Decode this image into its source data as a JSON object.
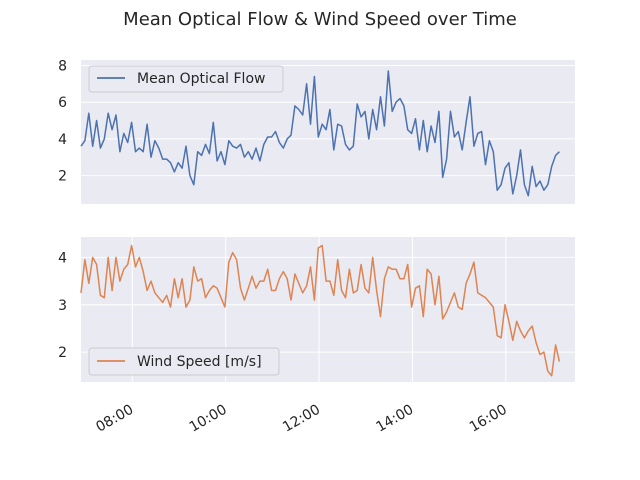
{
  "figure": {
    "title": "Mean Optical Flow  & Wind Speed over Time",
    "background": "#ffffff",
    "axes_face": "#eaeaf2",
    "grid_color": "#ffffff",
    "text_color": "#262626"
  },
  "chart_data": [
    {
      "type": "line",
      "title": "",
      "xlabel": "",
      "ylabel": "",
      "x_range": [
        "06:54",
        "17:29"
      ],
      "ylim": [
        0.45,
        8.3
      ],
      "yticks": [
        2,
        4,
        6,
        8
      ],
      "grid": true,
      "legend_position": "top-left",
      "show_xticklabels": false,
      "series": [
        {
          "name": "Mean Optical Flow",
          "color": "#4c72b0",
          "x_start": "06:54",
          "x_step_minutes": 5,
          "values": [
            3.6,
            3.9,
            5.4,
            3.6,
            5.0,
            3.5,
            4.0,
            5.4,
            4.5,
            5.3,
            3.3,
            4.3,
            3.8,
            4.9,
            3.3,
            3.5,
            3.3,
            4.8,
            3.0,
            3.9,
            3.5,
            2.9,
            2.9,
            2.7,
            2.2,
            2.7,
            2.4,
            3.6,
            2.0,
            1.5,
            3.3,
            3.1,
            3.7,
            3.2,
            4.9,
            2.8,
            3.3,
            2.6,
            3.9,
            3.6,
            3.5,
            3.7,
            3.0,
            3.3,
            2.9,
            3.5,
            2.8,
            3.7,
            4.1,
            4.1,
            4.4,
            3.8,
            3.5,
            4.0,
            4.2,
            5.8,
            5.6,
            5.3,
            7.0,
            4.8,
            7.4,
            4.1,
            4.8,
            4.5,
            5.6,
            3.4,
            4.8,
            4.7,
            3.7,
            3.4,
            3.6,
            5.9,
            5.2,
            5.5,
            4.0,
            5.6,
            4.5,
            6.3,
            4.7,
            7.7,
            5.5,
            6.0,
            6.2,
            5.8,
            4.5,
            4.3,
            5.1,
            3.4,
            5.0,
            3.3,
            4.7,
            3.8,
            5.5,
            1.9,
            2.9,
            5.5,
            4.1,
            4.4,
            3.4,
            4.9,
            6.3,
            3.6,
            4.3,
            4.4,
            2.6,
            3.9,
            3.3,
            1.2,
            1.5,
            2.4,
            2.7,
            1.0,
            2.0,
            3.4,
            1.5,
            0.9,
            2.5,
            1.4,
            1.7,
            1.2,
            1.5,
            2.5,
            3.1,
            3.3
          ]
        }
      ]
    },
    {
      "type": "line",
      "title": "",
      "xlabel": "",
      "ylabel": "",
      "x_range": [
        "06:54",
        "17:29"
      ],
      "ylim": [
        1.37,
        4.43
      ],
      "yticks": [
        2,
        3,
        4
      ],
      "grid": true,
      "legend_position": "bottom-left",
      "xtick_labels": [
        "08:00",
        "10:00",
        "12:00",
        "14:00",
        "16:00"
      ],
      "series": [
        {
          "name": "Wind Speed [m/s]",
          "color": "#dd8452",
          "x_start": "06:54",
          "x_step_minutes": 5,
          "values": [
            3.25,
            3.95,
            3.45,
            4.0,
            3.85,
            3.2,
            3.15,
            4.0,
            3.3,
            4.0,
            3.5,
            3.75,
            3.85,
            4.25,
            3.8,
            4.0,
            3.7,
            3.3,
            3.5,
            3.25,
            3.15,
            3.05,
            3.2,
            2.95,
            3.55,
            3.15,
            3.55,
            2.95,
            3.1,
            3.8,
            3.5,
            3.55,
            3.15,
            3.3,
            3.4,
            3.35,
            3.15,
            2.95,
            3.9,
            4.1,
            3.95,
            3.35,
            3.1,
            3.35,
            3.6,
            3.35,
            3.5,
            3.5,
            3.75,
            3.3,
            3.3,
            3.55,
            3.7,
            3.55,
            3.1,
            3.65,
            3.45,
            3.25,
            3.4,
            3.8,
            3.1,
            4.2,
            4.25,
            3.5,
            3.5,
            3.2,
            3.95,
            3.3,
            3.15,
            3.75,
            3.25,
            3.3,
            3.85,
            3.35,
            3.25,
            4.0,
            3.3,
            2.75,
            3.55,
            3.8,
            3.75,
            3.75,
            3.55,
            3.55,
            3.85,
            2.95,
            3.35,
            3.4,
            2.75,
            3.75,
            3.65,
            3.0,
            3.6,
            2.7,
            2.85,
            3.05,
            3.25,
            2.95,
            2.9,
            3.45,
            3.65,
            3.9,
            3.25,
            3.2,
            3.15,
            3.05,
            2.95,
            2.35,
            2.3,
            3.0,
            2.65,
            2.25,
            2.65,
            2.45,
            2.3,
            2.45,
            2.55,
            2.2,
            1.95,
            2.0,
            1.6,
            1.5,
            2.15,
            1.8
          ]
        }
      ]
    }
  ]
}
